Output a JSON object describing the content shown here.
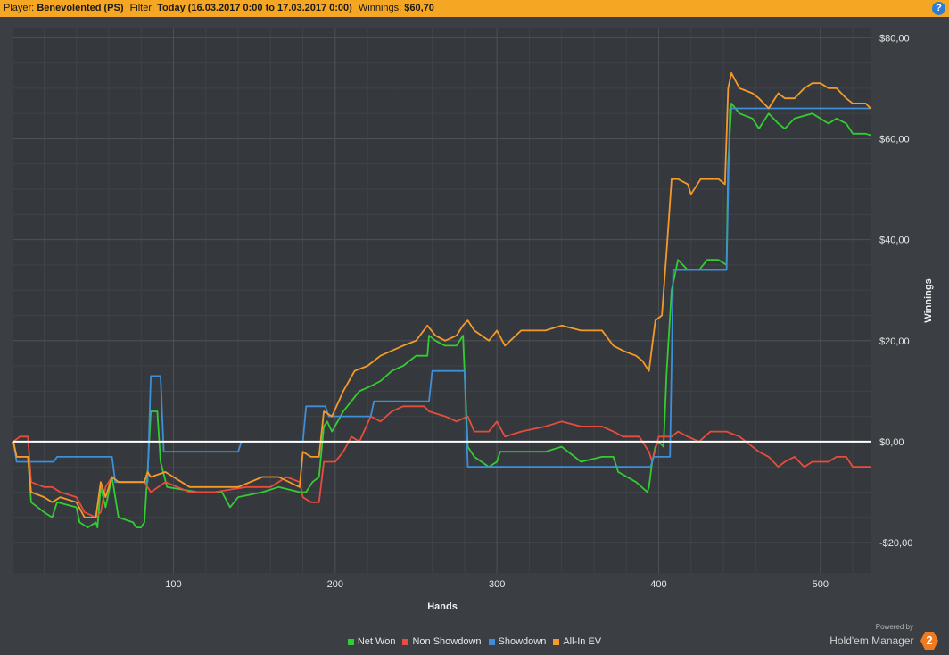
{
  "header": {
    "player_label": "Player:",
    "player_value": "Benevolented (PS)",
    "filter_label": "Filter:",
    "filter_value": "Today (16.03.2017 0:00 to 17.03.2017 0:00)",
    "winnings_label": "Winnings:",
    "winnings_value": "$60,70",
    "help_icon": "?"
  },
  "brand": {
    "powered_by": "Powered by",
    "name": "Hold'em Manager",
    "logo": "2"
  },
  "colors": {
    "background": "#3b3e42",
    "header_bg": "#f5a623",
    "zero_line": "#ffffff",
    "grid": "#4a4d52"
  },
  "chart_data": {
    "type": "line",
    "xlabel": "Hands",
    "ylabel": "Winnings",
    "xlim": [
      1,
      531
    ],
    "ylim": [
      -26,
      82
    ],
    "xticks": [
      100,
      200,
      300,
      400,
      500
    ],
    "yticks": [
      -20,
      0,
      20,
      40,
      60,
      80
    ],
    "ytick_labels": [
      "-$20,00",
      "$0,00",
      "$20,00",
      "$40,00",
      "$60,00",
      "$80,00"
    ],
    "grid": true,
    "legend_position": "bottom",
    "series": [
      {
        "name": "Net Won",
        "color": "#33cc33",
        "points": [
          [
            1,
            0
          ],
          [
            3,
            -3
          ],
          [
            10,
            -3
          ],
          [
            12,
            -12
          ],
          [
            20,
            -14
          ],
          [
            25,
            -15
          ],
          [
            28,
            -12
          ],
          [
            40,
            -13
          ],
          [
            42,
            -16
          ],
          [
            47,
            -17
          ],
          [
            52,
            -16
          ],
          [
            53,
            -17
          ],
          [
            55,
            -9
          ],
          [
            58,
            -13
          ],
          [
            62,
            -7
          ],
          [
            66,
            -15
          ],
          [
            75,
            -16
          ],
          [
            77,
            -17
          ],
          [
            80,
            -17
          ],
          [
            82,
            -16
          ],
          [
            84,
            -6
          ],
          [
            86,
            6
          ],
          [
            90,
            6
          ],
          [
            92,
            -4
          ],
          [
            96,
            -9
          ],
          [
            115,
            -10
          ],
          [
            130,
            -10
          ],
          [
            135,
            -13
          ],
          [
            140,
            -11
          ],
          [
            155,
            -10
          ],
          [
            165,
            -9
          ],
          [
            178,
            -10
          ],
          [
            182,
            -10
          ],
          [
            186,
            -8
          ],
          [
            190,
            -7
          ],
          [
            193,
            3
          ],
          [
            195,
            4
          ],
          [
            198,
            2
          ],
          [
            205,
            6
          ],
          [
            210,
            8
          ],
          [
            215,
            10
          ],
          [
            222,
            11
          ],
          [
            228,
            12
          ],
          [
            235,
            14
          ],
          [
            242,
            15
          ],
          [
            250,
            17
          ],
          [
            257,
            17
          ],
          [
            258,
            21
          ],
          [
            262,
            20
          ],
          [
            268,
            19
          ],
          [
            275,
            19
          ],
          [
            279,
            21
          ],
          [
            282,
            -1
          ],
          [
            286,
            -3
          ],
          [
            295,
            -5
          ],
          [
            300,
            -4
          ],
          [
            302,
            -2
          ],
          [
            330,
            -2
          ],
          [
            340,
            -1
          ],
          [
            352,
            -4
          ],
          [
            365,
            -3
          ],
          [
            372,
            -3
          ],
          [
            375,
            -6
          ],
          [
            386,
            -8
          ],
          [
            393,
            -10
          ],
          [
            394,
            -9
          ],
          [
            396,
            -4
          ],
          [
            398,
            -1
          ],
          [
            400,
            0
          ],
          [
            403,
            -1
          ],
          [
            405,
            14
          ],
          [
            408,
            30
          ],
          [
            412,
            36
          ],
          [
            418,
            34
          ],
          [
            425,
            34
          ],
          [
            430,
            36
          ],
          [
            437,
            36
          ],
          [
            442,
            35
          ],
          [
            443,
            55
          ],
          [
            445,
            67
          ],
          [
            450,
            65
          ],
          [
            458,
            64
          ],
          [
            462,
            62
          ],
          [
            468,
            65
          ],
          [
            474,
            63
          ],
          [
            478,
            62
          ],
          [
            484,
            64
          ],
          [
            495,
            65
          ],
          [
            500,
            64
          ],
          [
            505,
            63
          ],
          [
            510,
            64
          ],
          [
            516,
            63
          ],
          [
            520,
            61
          ],
          [
            528,
            61
          ],
          [
            531,
            60.7
          ]
        ]
      },
      {
        "name": "Non Showdown",
        "color": "#e84c3d",
        "points": [
          [
            1,
            0
          ],
          [
            5,
            1
          ],
          [
            10,
            1
          ],
          [
            12,
            -8
          ],
          [
            20,
            -9
          ],
          [
            25,
            -9
          ],
          [
            30,
            -10
          ],
          [
            40,
            -11
          ],
          [
            45,
            -14
          ],
          [
            52,
            -15
          ],
          [
            55,
            -14
          ],
          [
            58,
            -9
          ],
          [
            62,
            -7
          ],
          [
            66,
            -8
          ],
          [
            75,
            -8
          ],
          [
            82,
            -8
          ],
          [
            84,
            -9
          ],
          [
            86,
            -10
          ],
          [
            95,
            -8
          ],
          [
            110,
            -10
          ],
          [
            125,
            -10
          ],
          [
            145,
            -9
          ],
          [
            160,
            -9
          ],
          [
            170,
            -7
          ],
          [
            178,
            -8
          ],
          [
            180,
            -11
          ],
          [
            185,
            -12
          ],
          [
            190,
            -12
          ],
          [
            193,
            -4
          ],
          [
            200,
            -4
          ],
          [
            205,
            -2
          ],
          [
            210,
            1
          ],
          [
            215,
            0
          ],
          [
            222,
            5
          ],
          [
            228,
            4
          ],
          [
            235,
            6
          ],
          [
            242,
            7
          ],
          [
            255,
            7
          ],
          [
            258,
            6
          ],
          [
            268,
            5
          ],
          [
            275,
            4
          ],
          [
            282,
            5
          ],
          [
            286,
            2
          ],
          [
            295,
            2
          ],
          [
            300,
            4
          ],
          [
            305,
            1
          ],
          [
            315,
            2
          ],
          [
            330,
            3
          ],
          [
            340,
            4
          ],
          [
            352,
            3
          ],
          [
            365,
            3
          ],
          [
            372,
            2
          ],
          [
            378,
            1
          ],
          [
            388,
            1
          ],
          [
            394,
            -2
          ],
          [
            396,
            -4
          ],
          [
            400,
            1
          ],
          [
            403,
            1
          ],
          [
            408,
            1
          ],
          [
            412,
            2
          ],
          [
            418,
            1
          ],
          [
            425,
            0
          ],
          [
            432,
            2
          ],
          [
            437,
            2
          ],
          [
            442,
            2
          ],
          [
            450,
            1
          ],
          [
            458,
            -1
          ],
          [
            462,
            -2
          ],
          [
            468,
            -3
          ],
          [
            474,
            -5
          ],
          [
            478,
            -4
          ],
          [
            484,
            -3
          ],
          [
            490,
            -5
          ],
          [
            495,
            -4
          ],
          [
            500,
            -4
          ],
          [
            505,
            -4
          ],
          [
            510,
            -3
          ],
          [
            516,
            -3
          ],
          [
            520,
            -5
          ],
          [
            526,
            -5
          ],
          [
            531,
            -5
          ]
        ]
      },
      {
        "name": "Showdown",
        "color": "#3d8fd9",
        "points": [
          [
            1,
            0
          ],
          [
            3,
            -4
          ],
          [
            26,
            -4
          ],
          [
            28,
            -3
          ],
          [
            62,
            -3
          ],
          [
            64,
            -8
          ],
          [
            84,
            -8
          ],
          [
            86,
            13
          ],
          [
            92,
            13
          ],
          [
            94,
            -2
          ],
          [
            140,
            -2
          ],
          [
            142,
            0
          ],
          [
            180,
            0
          ],
          [
            182,
            7
          ],
          [
            194,
            7
          ],
          [
            196,
            5
          ],
          [
            222,
            5
          ],
          [
            224,
            8
          ],
          [
            258,
            8
          ],
          [
            260,
            14
          ],
          [
            280,
            14
          ],
          [
            282,
            -5
          ],
          [
            395,
            -5
          ],
          [
            397,
            -3
          ],
          [
            407,
            -3
          ],
          [
            409,
            34
          ],
          [
            442,
            34
          ],
          [
            444,
            66
          ],
          [
            531,
            66
          ]
        ]
      },
      {
        "name": "All-In EV",
        "color": "#f39a2b",
        "points": [
          [
            1,
            0
          ],
          [
            3,
            -3
          ],
          [
            10,
            -3
          ],
          [
            12,
            -10
          ],
          [
            20,
            -11
          ],
          [
            25,
            -12
          ],
          [
            30,
            -11
          ],
          [
            40,
            -12
          ],
          [
            45,
            -15
          ],
          [
            52,
            -15
          ],
          [
            55,
            -8
          ],
          [
            58,
            -11
          ],
          [
            62,
            -7
          ],
          [
            66,
            -8
          ],
          [
            75,
            -8
          ],
          [
            82,
            -8
          ],
          [
            84,
            -6
          ],
          [
            86,
            -7
          ],
          [
            95,
            -6
          ],
          [
            110,
            -9
          ],
          [
            125,
            -9
          ],
          [
            140,
            -9
          ],
          [
            155,
            -7
          ],
          [
            165,
            -7
          ],
          [
            178,
            -9
          ],
          [
            180,
            -2
          ],
          [
            185,
            -3
          ],
          [
            190,
            -3
          ],
          [
            193,
            6
          ],
          [
            198,
            5
          ],
          [
            205,
            10
          ],
          [
            212,
            14
          ],
          [
            220,
            15
          ],
          [
            228,
            17
          ],
          [
            235,
            18
          ],
          [
            242,
            19
          ],
          [
            250,
            20
          ],
          [
            257,
            23
          ],
          [
            262,
            21
          ],
          [
            268,
            20
          ],
          [
            275,
            21
          ],
          [
            279,
            23
          ],
          [
            282,
            24
          ],
          [
            286,
            22
          ],
          [
            295,
            20
          ],
          [
            300,
            22
          ],
          [
            305,
            19
          ],
          [
            315,
            22
          ],
          [
            330,
            22
          ],
          [
            340,
            23
          ],
          [
            352,
            22
          ],
          [
            365,
            22
          ],
          [
            372,
            19
          ],
          [
            378,
            18
          ],
          [
            386,
            17
          ],
          [
            390,
            16
          ],
          [
            394,
            14
          ],
          [
            398,
            24
          ],
          [
            402,
            25
          ],
          [
            405,
            38
          ],
          [
            408,
            52
          ],
          [
            412,
            52
          ],
          [
            418,
            51
          ],
          [
            420,
            49
          ],
          [
            426,
            52
          ],
          [
            432,
            52
          ],
          [
            437,
            52
          ],
          [
            441,
            51
          ],
          [
            443,
            70
          ],
          [
            445,
            73
          ],
          [
            450,
            70
          ],
          [
            458,
            69
          ],
          [
            462,
            68
          ],
          [
            468,
            66
          ],
          [
            474,
            69
          ],
          [
            478,
            68
          ],
          [
            484,
            68
          ],
          [
            490,
            70
          ],
          [
            495,
            71
          ],
          [
            500,
            71
          ],
          [
            505,
            70
          ],
          [
            510,
            70
          ],
          [
            516,
            68
          ],
          [
            520,
            67
          ],
          [
            528,
            67
          ],
          [
            531,
            66
          ]
        ]
      }
    ]
  }
}
